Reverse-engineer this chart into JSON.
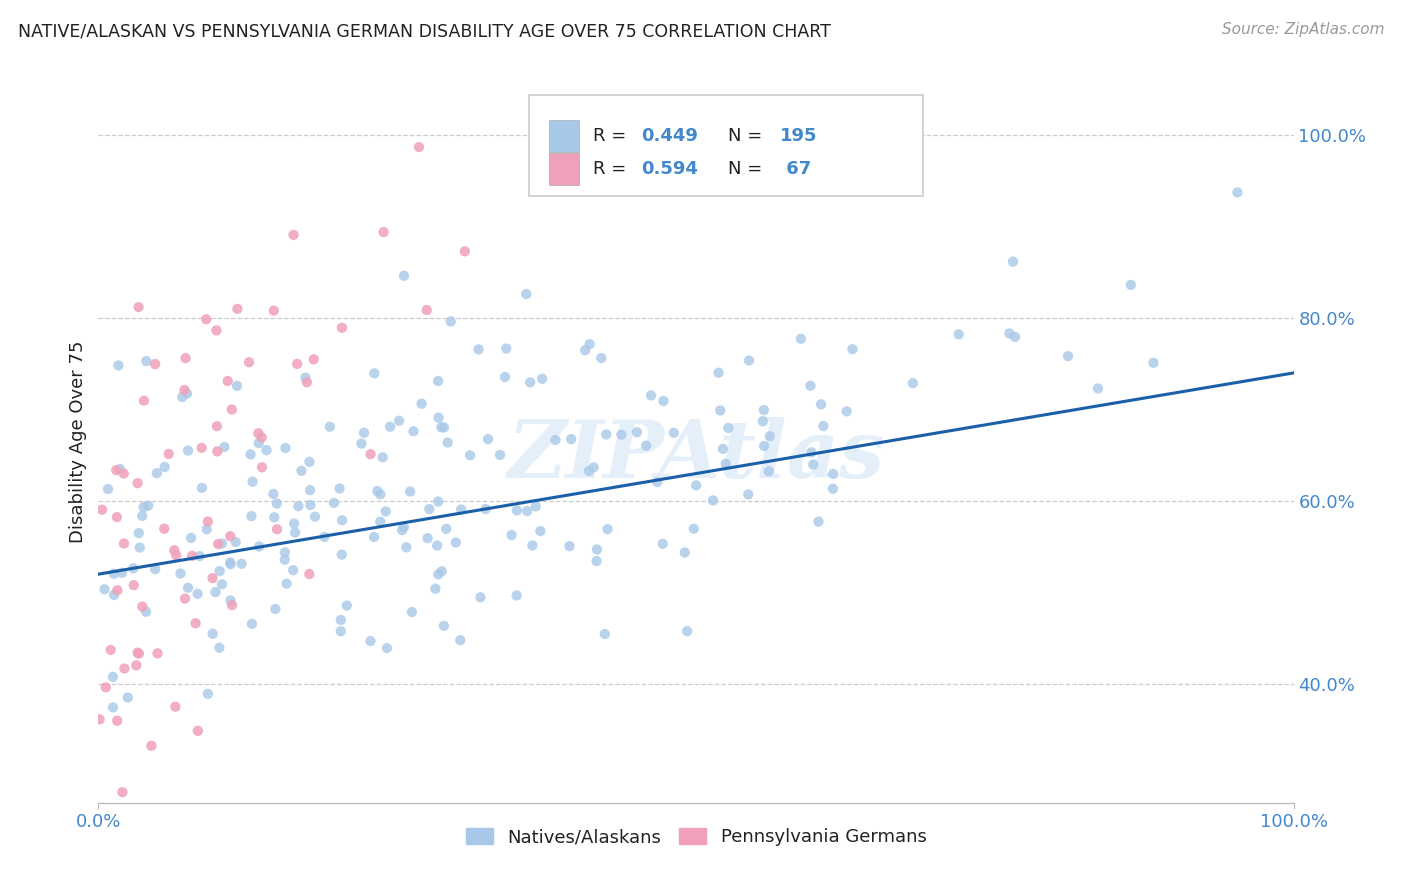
{
  "title": "NATIVE/ALASKAN VS PENNSYLVANIA GERMAN DISABILITY AGE OVER 75 CORRELATION CHART",
  "source": "Source: ZipAtlas.com",
  "ylabel": "Disability Age Over 75",
  "watermark": "ZIPAtlas",
  "blue_R": 0.449,
  "blue_N": 195,
  "pink_R": 0.594,
  "pink_N": 67,
  "blue_color": "#a8c8e8",
  "pink_color": "#f0a0b8",
  "blue_line_color": "#1a5fa8",
  "pink_line_color": "#e02860",
  "xlim": [
    0.0,
    1.0
  ],
  "ylim": [
    0.27,
    1.06
  ],
  "ytick_values": [
    0.4,
    0.6,
    0.8,
    1.0
  ],
  "ytick_labels": [
    "40.0%",
    "60.0%",
    "80.0%",
    "100.0%"
  ],
  "background_color": "#ffffff",
  "grid_color": "#cccccc",
  "title_color": "#222222",
  "axis_color": "#4488cc",
  "source_color": "#999999",
  "seed": 7
}
